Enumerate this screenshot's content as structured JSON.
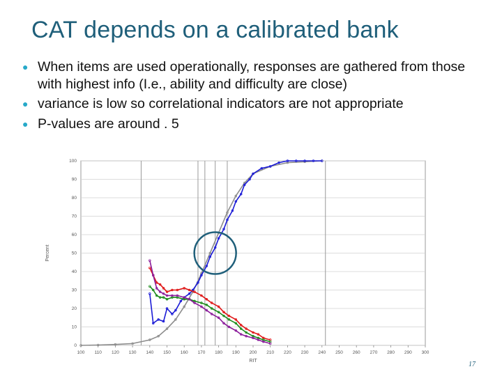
{
  "slide": {
    "title": "CAT depends on a calibrated bank",
    "bullets": [
      "When items are used operationally, responses are gathered from those with highest info (I.e., ability and difficulty are close)",
      "variance is low so correlational indicators are not appropriate",
      "P-values are around . 5"
    ],
    "page_number": "17"
  },
  "colors": {
    "title": "#1f5f7a",
    "bullet": "#27a9c9",
    "highlight_circle": "#1f5f7a",
    "series": [
      "#1a1ad6",
      "#e01515",
      "#1a8a1a",
      "#8a1a9a",
      "#8c8c8c"
    ]
  },
  "chart_data": {
    "type": "line",
    "xlabel": "RIT",
    "ylabel": "Percent",
    "xlim": [
      100,
      300
    ],
    "ylim": [
      0,
      100
    ],
    "x_ticks": [
      "100",
      "110",
      "120",
      "130",
      "140",
      "150",
      "160",
      "170",
      "180",
      "190",
      "200",
      "210",
      "220",
      "230",
      "240",
      "250",
      "260",
      "270",
      "280",
      "290",
      "300"
    ],
    "y_ticks": [
      "0",
      "10",
      "20",
      "30",
      "40",
      "50",
      "60",
      "70",
      "80",
      "90",
      "100"
    ],
    "vertical_reference_lines": [
      135,
      168,
      172,
      178,
      185,
      242
    ],
    "highlight_circle": {
      "x": 178,
      "y": 50
    },
    "series": [
      {
        "color": "#8c8c8c",
        "x": [
          100,
          110,
          120,
          130,
          140,
          145,
          150,
          155,
          160,
          165,
          170,
          175,
          180,
          185,
          190,
          195,
          200,
          210,
          220,
          230,
          240
        ],
        "values": [
          0,
          0.2,
          0.5,
          1,
          3,
          5,
          9,
          14,
          21,
          29,
          39,
          50,
          61,
          72,
          81,
          88,
          93,
          97,
          99,
          99.5,
          100
        ]
      },
      {
        "color": "#1a1ad6",
        "x": [
          140,
          142,
          145,
          148,
          150,
          153,
          155,
          158,
          160,
          163,
          165,
          168,
          170,
          173,
          175,
          178,
          180,
          183,
          185,
          188,
          190,
          193,
          195,
          198,
          200,
          205,
          210,
          215,
          220,
          225,
          230,
          235,
          240
        ],
        "values": [
          28,
          12,
          14,
          13,
          20,
          17,
          19,
          24,
          26,
          28,
          30,
          34,
          38,
          43,
          48,
          53,
          58,
          63,
          68,
          73,
          78,
          82,
          87,
          90,
          93,
          96,
          97,
          99,
          100,
          100,
          100,
          100,
          100
        ]
      },
      {
        "color": "#e01515",
        "x": [
          140,
          142,
          144,
          146,
          148,
          150,
          153,
          156,
          160,
          163,
          166,
          170,
          173,
          176,
          180,
          183,
          186,
          190,
          193,
          196,
          200,
          203,
          206,
          210
        ],
        "values": [
          42,
          38,
          34,
          33,
          31,
          29,
          30,
          30,
          31,
          30,
          29,
          27,
          25,
          23,
          21,
          18,
          16,
          14,
          11,
          9,
          7,
          6,
          4,
          3
        ]
      },
      {
        "color": "#1a8a1a",
        "x": [
          140,
          142,
          144,
          146,
          148,
          150,
          153,
          156,
          160,
          163,
          166,
          170,
          173,
          176,
          180,
          183,
          186,
          190,
          193,
          196,
          200,
          203,
          206,
          210
        ],
        "values": [
          32,
          30,
          27,
          26,
          26,
          25,
          26,
          26,
          25,
          25,
          24,
          23,
          22,
          20,
          18,
          16,
          14,
          12,
          9,
          7,
          5,
          4,
          3,
          2
        ]
      },
      {
        "color": "#8a1a9a",
        "x": [
          140,
          142,
          144,
          146,
          148,
          150,
          153,
          156,
          160,
          163,
          166,
          170,
          173,
          176,
          180,
          183,
          186,
          190,
          193,
          196,
          200,
          203,
          206,
          210
        ],
        "values": [
          46,
          38,
          31,
          29,
          28,
          27,
          27,
          27,
          26,
          25,
          23,
          21,
          19,
          17,
          15,
          12,
          10,
          8,
          6,
          5,
          4,
          3,
          2,
          1
        ]
      }
    ]
  }
}
